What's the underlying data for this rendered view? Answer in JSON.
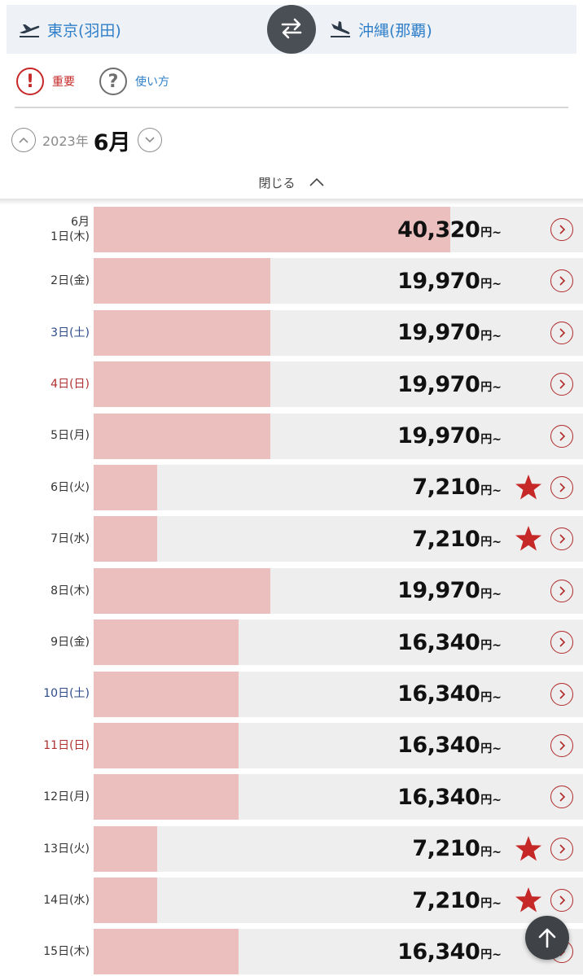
{
  "route": {
    "origin": "東京(羽田)",
    "destination": "沖縄(那覇)",
    "accent": "#2f7fc9"
  },
  "info": {
    "important_label": "重要",
    "howto_label": "使い方"
  },
  "month_nav": {
    "year": "2023年",
    "month": "6月"
  },
  "close_label": "閉じる",
  "price_unit": "円~",
  "max_price": 40320,
  "rows": [
    {
      "month": "6月",
      "date": "1日(木)",
      "price": "40,320",
      "amount": 40320,
      "day_type": "weekday",
      "lowest": false
    },
    {
      "month": "",
      "date": "2日(金)",
      "price": "19,970",
      "amount": 19970,
      "day_type": "weekday",
      "lowest": false
    },
    {
      "month": "",
      "date": "3日(土)",
      "price": "19,970",
      "amount": 19970,
      "day_type": "sat",
      "lowest": false
    },
    {
      "month": "",
      "date": "4日(日)",
      "price": "19,970",
      "amount": 19970,
      "day_type": "sun",
      "lowest": false
    },
    {
      "month": "",
      "date": "5日(月)",
      "price": "19,970",
      "amount": 19970,
      "day_type": "weekday",
      "lowest": false
    },
    {
      "month": "",
      "date": "6日(火)",
      "price": "7,210",
      "amount": 7210,
      "day_type": "weekday",
      "lowest": true
    },
    {
      "month": "",
      "date": "7日(水)",
      "price": "7,210",
      "amount": 7210,
      "day_type": "weekday",
      "lowest": true
    },
    {
      "month": "",
      "date": "8日(木)",
      "price": "19,970",
      "amount": 19970,
      "day_type": "weekday",
      "lowest": false
    },
    {
      "month": "",
      "date": "9日(金)",
      "price": "16,340",
      "amount": 16340,
      "day_type": "weekday",
      "lowest": false
    },
    {
      "month": "",
      "date": "10日(土)",
      "price": "16,340",
      "amount": 16340,
      "day_type": "sat",
      "lowest": false
    },
    {
      "month": "",
      "date": "11日(日)",
      "price": "16,340",
      "amount": 16340,
      "day_type": "sun",
      "lowest": false
    },
    {
      "month": "",
      "date": "12日(月)",
      "price": "16,340",
      "amount": 16340,
      "day_type": "weekday",
      "lowest": false
    },
    {
      "month": "",
      "date": "13日(火)",
      "price": "7,210",
      "amount": 7210,
      "day_type": "weekday",
      "lowest": true
    },
    {
      "month": "",
      "date": "14日(水)",
      "price": "7,210",
      "amount": 7210,
      "day_type": "weekday",
      "lowest": true
    },
    {
      "month": "",
      "date": "15日(木)",
      "price": "16,340",
      "amount": 16340,
      "day_type": "weekday",
      "lowest": false
    }
  ],
  "colors": {
    "bar": "#eabfbd",
    "track": "#eeeeee",
    "star": "#c62828",
    "saturday": "#2d4a8a",
    "sunday": "#b03030"
  }
}
